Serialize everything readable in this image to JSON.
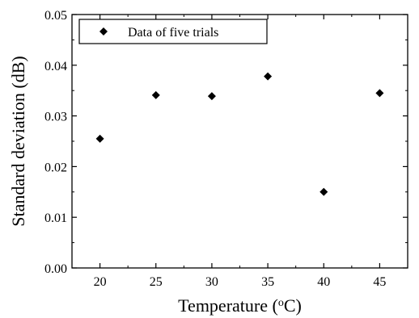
{
  "chart_data": {
    "type": "scatter",
    "title": "",
    "xlabel": "Temperature (",
    "xlabel_sup": "o",
    "xlabel_suffix": "C)",
    "ylabel": "Standard deviation (dB)",
    "xlim": [
      17.5,
      47.5
    ],
    "ylim": [
      0.0,
      0.05
    ],
    "xticks": [
      "20",
      "25",
      "30",
      "35",
      "40",
      "45"
    ],
    "xtick_values": [
      20,
      25,
      30,
      35,
      40,
      45
    ],
    "yticks": [
      "0.00",
      "0.01",
      "0.02",
      "0.03",
      "0.04",
      "0.05"
    ],
    "ytick_values": [
      0.0,
      0.01,
      0.02,
      0.03,
      0.04,
      0.05
    ],
    "grid": false,
    "legend_position": "top-left",
    "series": [
      {
        "name": "Data of five trials",
        "marker": "diamond",
        "color": "#000000",
        "x": [
          20,
          25,
          30,
          35,
          40,
          45
        ],
        "y": [
          0.0255,
          0.0341,
          0.0339,
          0.0378,
          0.015,
          0.0345
        ]
      }
    ]
  }
}
